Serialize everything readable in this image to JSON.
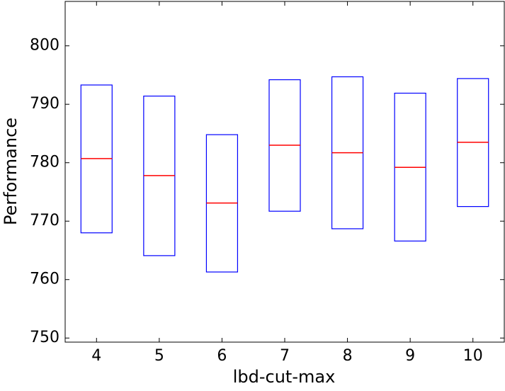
{
  "chart_data": {
    "type": "box",
    "x_label": "lbd-cut-max",
    "y_label": "Performance",
    "categories": [
      "4",
      "5",
      "6",
      "7",
      "8",
      "9",
      "10"
    ],
    "q1": [
      768.0,
      764.1,
      761.3,
      771.7,
      768.7,
      766.6,
      772.5
    ],
    "median": [
      780.7,
      777.8,
      773.1,
      783.0,
      781.7,
      779.2,
      783.5
    ],
    "q3": [
      793.3,
      791.4,
      784.8,
      794.2,
      794.7,
      791.9,
      794.4
    ],
    "box_color": "#0000ff",
    "median_color": "#ff0000",
    "ylim": [
      749.3,
      807.6
    ],
    "yticks": [
      750,
      760,
      770,
      780,
      790,
      800
    ]
  }
}
